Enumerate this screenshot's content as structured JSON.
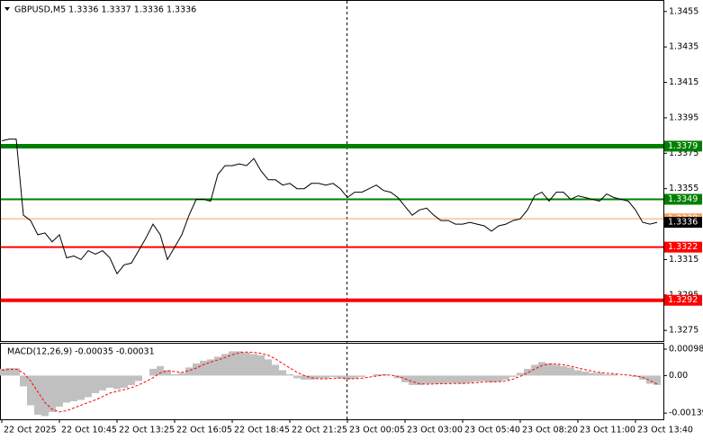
{
  "chart_data": [
    {
      "type": "line",
      "title": "GBPUSD,M5  1.3336 1.3337 1.3336 1.3336",
      "categories": [
        "22 Oct 2025",
        null,
        null,
        null,
        null,
        null,
        null,
        null,
        "22 Oct 10:45",
        null,
        null,
        null,
        null,
        null,
        null,
        null,
        "22 Oct 13:25",
        null,
        null,
        null,
        null,
        null,
        null,
        null,
        "22 Oct 16:05",
        null,
        null,
        null,
        null,
        null,
        null,
        null,
        "22 Oct 18:45",
        null,
        null,
        null,
        null,
        null,
        null,
        null,
        "22 Oct 21:25",
        null,
        null,
        null,
        null,
        null,
        null,
        null,
        "23 Oct 00:05",
        null,
        null,
        null,
        null,
        null,
        null,
        null,
        "23 Oct 03:00",
        null,
        null,
        null,
        null,
        null,
        null,
        null,
        "23 Oct 05:40",
        null,
        null,
        null,
        null,
        null,
        null,
        null,
        "23 Oct 08:20",
        null,
        null,
        null,
        null,
        null,
        null,
        null,
        "23 Oct 11:00",
        null,
        null,
        null,
        null,
        null,
        null,
        null,
        "23 Oct 13:40",
        null,
        null,
        null
      ],
      "series": [
        {
          "color": "#000000",
          "values": [
            1.3382,
            1.3383,
            1.3383,
            1.334,
            1.3337,
            1.3329,
            1.333,
            1.3325,
            1.3329,
            1.3316,
            1.3317,
            1.3315,
            1.332,
            1.3318,
            1.332,
            1.3316,
            1.3307,
            1.3312,
            1.3313,
            1.332,
            1.3327,
            1.3335,
            1.3329,
            1.3315,
            1.3322,
            1.3329,
            1.334,
            1.3349,
            1.3349,
            1.3348,
            1.3363,
            1.3368,
            1.3368,
            1.3369,
            1.3368,
            1.3372,
            1.3365,
            1.336,
            1.336,
            1.3357,
            1.3358,
            1.3355,
            1.3355,
            1.3358,
            1.3358,
            1.3357,
            1.3358,
            1.3355,
            1.335,
            1.3353,
            1.3353,
            1.3355,
            1.3357,
            1.3354,
            1.3353,
            1.335,
            1.3345,
            1.334,
            1.3343,
            1.3344,
            1.334,
            1.3337,
            1.3337,
            1.3335,
            1.3335,
            1.3336,
            1.3335,
            1.3334,
            1.3331,
            1.3334,
            1.3335,
            1.3337,
            1.3338,
            1.3343,
            1.3351,
            1.3353,
            1.3348,
            1.3353,
            1.3353,
            1.3349,
            1.3351,
            1.335,
            1.3349,
            1.3348,
            1.3352,
            1.335,
            1.3349,
            1.3348,
            1.3343,
            1.3336,
            1.3335,
            1.3336
          ]
        }
      ],
      "ylim": [
        1.3269,
        1.3461
      ],
      "yticks": [
        1.3455,
        1.3435,
        1.3415,
        1.3395,
        1.3375,
        1.3355,
        1.3315,
        1.3295,
        1.3275
      ],
      "levels": [
        {
          "value": 1.3379,
          "color": "#008000"
        },
        {
          "value": 1.3349,
          "color": "#008000"
        },
        {
          "value": 1.3338,
          "color": "#f4a460"
        },
        {
          "value": 1.3322,
          "color": "#ff0000"
        },
        {
          "value": 1.3292,
          "color": "#ff0000"
        }
      ],
      "last_price": 1.3336
    },
    {
      "type": "macd",
      "title": "MACD(12,26,9) -0.00035 -0.00031",
      "series": [
        {
          "type": "bar",
          "color": "#c0c0c0",
          "values": [
            0.00025,
            0.00028,
            0.00027,
            -0.0004,
            -0.0011,
            -0.00145,
            -0.0015,
            -0.00135,
            -0.00115,
            -0.001,
            -0.00095,
            -0.0009,
            -0.0008,
            -0.00065,
            -0.00055,
            -0.00045,
            -0.0005,
            -0.00045,
            -0.00035,
            -0.0002,
            0,
            0.00025,
            0.00035,
            0.0002,
            5e-05,
            0.0001,
            0.0003,
            0.00045,
            0.00055,
            0.0006,
            0.0007,
            0.0008,
            0.0009,
            0.0009,
            0.00085,
            0.0008,
            0.00075,
            0.0006,
            0.0004,
            0.0002,
            5e-05,
            -0.0001,
            -0.00015,
            -0.00015,
            -0.0001,
            -0.0001,
            -5e-05,
            -0.0001,
            -0.00015,
            -0.0001,
            -5e-05,
            0,
            5e-05,
            5e-05,
            0,
            -0.0001,
            -0.00025,
            -0.00035,
            -0.00035,
            -0.0003,
            -0.0003,
            -0.0003,
            -0.00028,
            -0.00028,
            -0.0003,
            -0.00025,
            -0.00022,
            -0.0002,
            -0.00025,
            -0.00022,
            -0.00015,
            -5e-05,
            0.0001,
            0.00025,
            0.0004,
            0.0005,
            0.00045,
            0.0004,
            0.00035,
            0.0003,
            0.0002,
            0.00015,
            0.0001,
            0.0001,
            5e-05,
            5e-05,
            0,
            0,
            -5e-05,
            -0.00015,
            -0.0003,
            -0.00035
          ]
        },
        {
          "type": "line",
          "color": "#ff0000",
          "values": [
            0.0002,
            0.00022,
            0.00024,
            0.0001,
            -0.0002,
            -0.0006,
            -0.001,
            -0.00125,
            -0.00135,
            -0.0013,
            -0.0012,
            -0.0011,
            -0.001,
            -0.0009,
            -0.00078,
            -0.00065,
            -0.00058,
            -0.00052,
            -0.00045,
            -0.00035,
            -0.00022,
            -8e-05,
            0.0001,
            0.00018,
            0.00015,
            0.00012,
            0.00018,
            0.00028,
            0.0004,
            0.0005,
            0.00058,
            0.00067,
            0.00077,
            0.00085,
            0.00087,
            0.00086,
            0.00082,
            0.00075,
            0.00062,
            0.00045,
            0.00028,
            0.00012,
            0,
            -8e-05,
            -0.00012,
            -0.00012,
            -0.0001,
            -9e-05,
            -0.00011,
            -0.00012,
            -0.0001,
            -6e-05,
            -2e-05,
            2e-05,
            2e-05,
            -3e-05,
            -0.00012,
            -0.00022,
            -0.0003,
            -0.00032,
            -0.00031,
            -0.0003,
            -0.0003,
            -0.00029,
            -0.00029,
            -0.00028,
            -0.00026,
            -0.00023,
            -0.00023,
            -0.00023,
            -0.0002,
            -0.00013,
            -3e-05,
            0.0001,
            0.00024,
            0.00037,
            0.00043,
            0.00043,
            0.0004,
            0.00035,
            0.00028,
            0.00022,
            0.00016,
            0.00012,
            9e-05,
            7e-05,
            4e-05,
            2e-05,
            -1e-05,
            -7e-05,
            -0.00018,
            -0.00031
          ]
        }
      ],
      "ylim": [
        -0.00162,
        0.00118
      ],
      "yticks": [
        0.00098,
        {
          "value": 0,
          "label": "0.00"
        },
        -0.00139
      ]
    }
  ]
}
